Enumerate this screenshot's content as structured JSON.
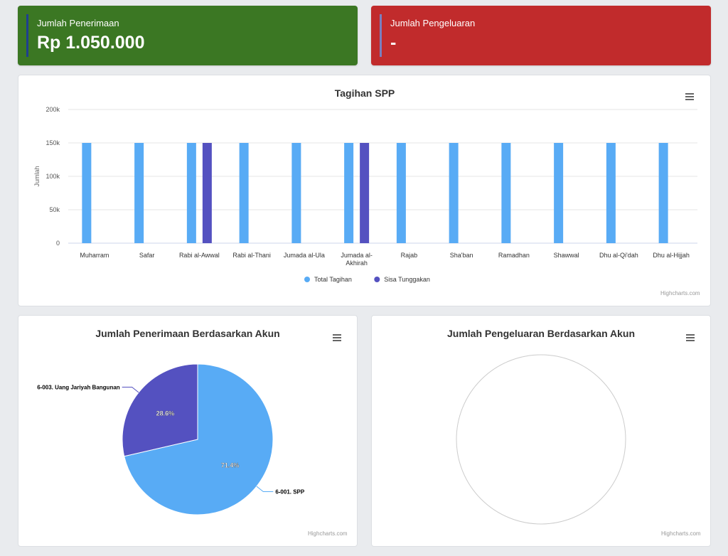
{
  "cards": {
    "income": {
      "label": "Jumlah Penerimaan",
      "value": "Rp 1.050.000"
    },
    "expense": {
      "label": "Jumlah Pengeluaran",
      "value": "-"
    }
  },
  "credits": "Highcharts.com",
  "colors": {
    "income": "#3b7723",
    "expense": "#c12b2c",
    "series1": "#58abf5",
    "series2": "#5451c0"
  },
  "icons": {
    "menu": "hamburger-menu-icon"
  },
  "chart_data": [
    {
      "type": "bar",
      "title": "Tagihan SPP",
      "ylabel": "Jumlah",
      "xlabel": "",
      "ylim": [
        0,
        200000
      ],
      "yticks": [
        "0",
        "50k",
        "100k",
        "150k",
        "200k"
      ],
      "categories": [
        "Muharram",
        "Safar",
        "Rabi al-Awwal",
        "Rabi al-Thani",
        "Jumada al-Ula",
        "Jumada al-Akhirah",
        "Rajab",
        "Sha'ban",
        "Ramadhan",
        "Shawwal",
        "Dhu al-Qi'dah",
        "Dhu al-Hijjah"
      ],
      "category_lines": [
        [
          "Muharram"
        ],
        [
          "Safar"
        ],
        [
          "Rabi al-Awwal"
        ],
        [
          "Rabi al-Thani"
        ],
        [
          "Jumada al-Ula"
        ],
        [
          "Jumada al-",
          "Akhirah"
        ],
        [
          "Rajab"
        ],
        [
          "Sha'ban"
        ],
        [
          "Ramadhan"
        ],
        [
          "Shawwal"
        ],
        [
          "Dhu al-Qi'dah"
        ],
        [
          "Dhu al-Hijjah"
        ]
      ],
      "series": [
        {
          "name": "Total Tagihan",
          "color": "#58abf5",
          "values": [
            150000,
            150000,
            150000,
            150000,
            150000,
            150000,
            150000,
            150000,
            150000,
            150000,
            150000,
            150000
          ]
        },
        {
          "name": "Sisa Tunggakan",
          "color": "#5451c0",
          "values": [
            0,
            0,
            150000,
            0,
            0,
            150000,
            0,
            0,
            0,
            0,
            0,
            0
          ]
        }
      ],
      "legend": "bottom-center",
      "grid": true
    },
    {
      "type": "pie",
      "title": "Jumlah Penerimaan Berdasarkan Akun",
      "slices": [
        {
          "name": "6-001. SPP",
          "value": 71.4,
          "label": "71.4%",
          "color": "#58abf5"
        },
        {
          "name": "6-003. Uang Jariyah Bangunan",
          "value": 28.6,
          "label": "28.6%",
          "color": "#5451c0"
        }
      ]
    },
    {
      "type": "pie",
      "title": "Jumlah Pengeluaran Berdasarkan Akun",
      "slices": []
    }
  ]
}
